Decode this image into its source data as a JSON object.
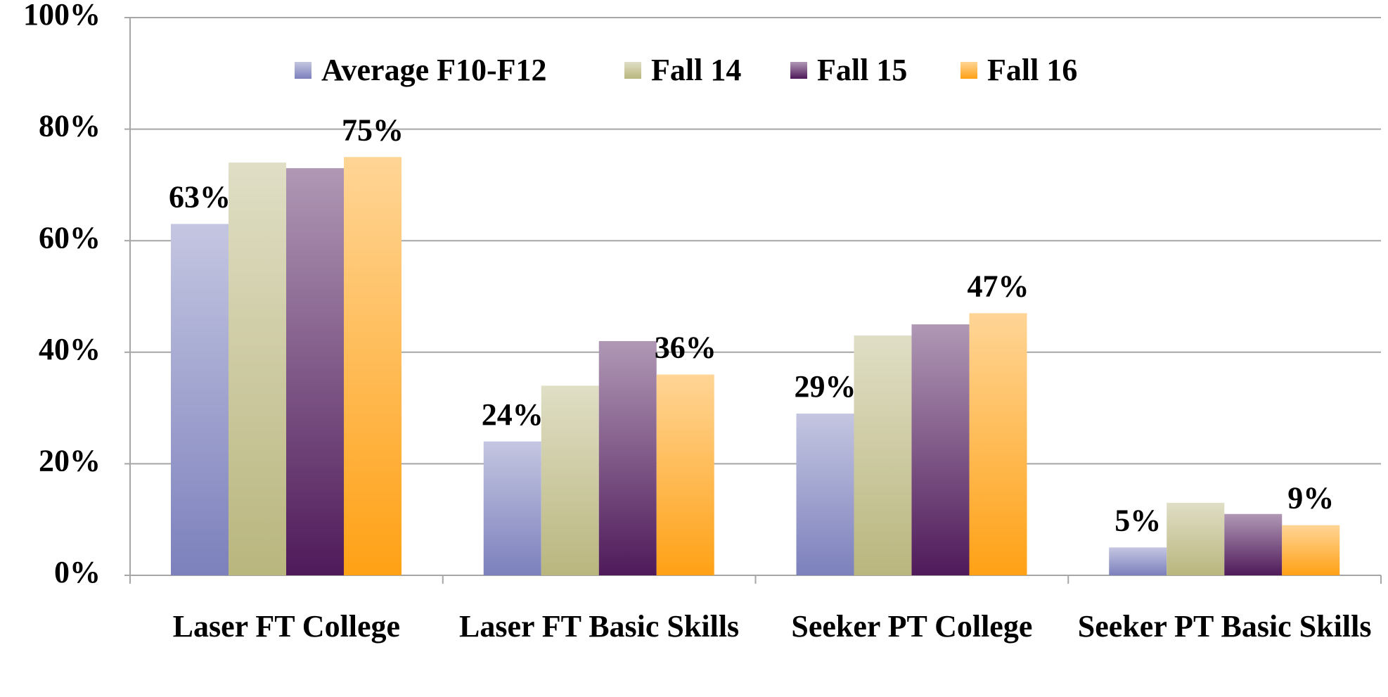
{
  "chart_data": {
    "type": "bar",
    "categories": [
      "Laser FT College",
      "Laser FT Basic Skills",
      "Seeker PT College",
      "Seeker PT Basic Skills"
    ],
    "series": [
      {
        "name": "Average F10-F12",
        "color": "#7c80bc",
        "values": [
          63,
          24,
          29,
          5
        ],
        "value_labels": [
          "63%",
          "24%",
          "29%",
          "5%"
        ]
      },
      {
        "name": "Fall 14",
        "color": "#b9b67e",
        "values": [
          74,
          34,
          43,
          13
        ]
      },
      {
        "name": "Fall 15",
        "color": "#4f1a5a",
        "values": [
          73,
          42,
          45,
          11
        ]
      },
      {
        "name": "Fall 16",
        "color": "#ffa115",
        "values": [
          75,
          36,
          47,
          9
        ],
        "value_labels": [
          "75%",
          "36%",
          "47%",
          "9%"
        ]
      }
    ],
    "ylim": [
      0,
      100
    ],
    "yticks": [
      {
        "value": 0,
        "label": "0%"
      },
      {
        "value": 20,
        "label": "20%"
      },
      {
        "value": 40,
        "label": "40%"
      },
      {
        "value": 60,
        "label": "60%"
      },
      {
        "value": 80,
        "label": "80%"
      },
      {
        "value": 100,
        "label": "100%"
      }
    ],
    "grid": true,
    "legend": "top"
  }
}
